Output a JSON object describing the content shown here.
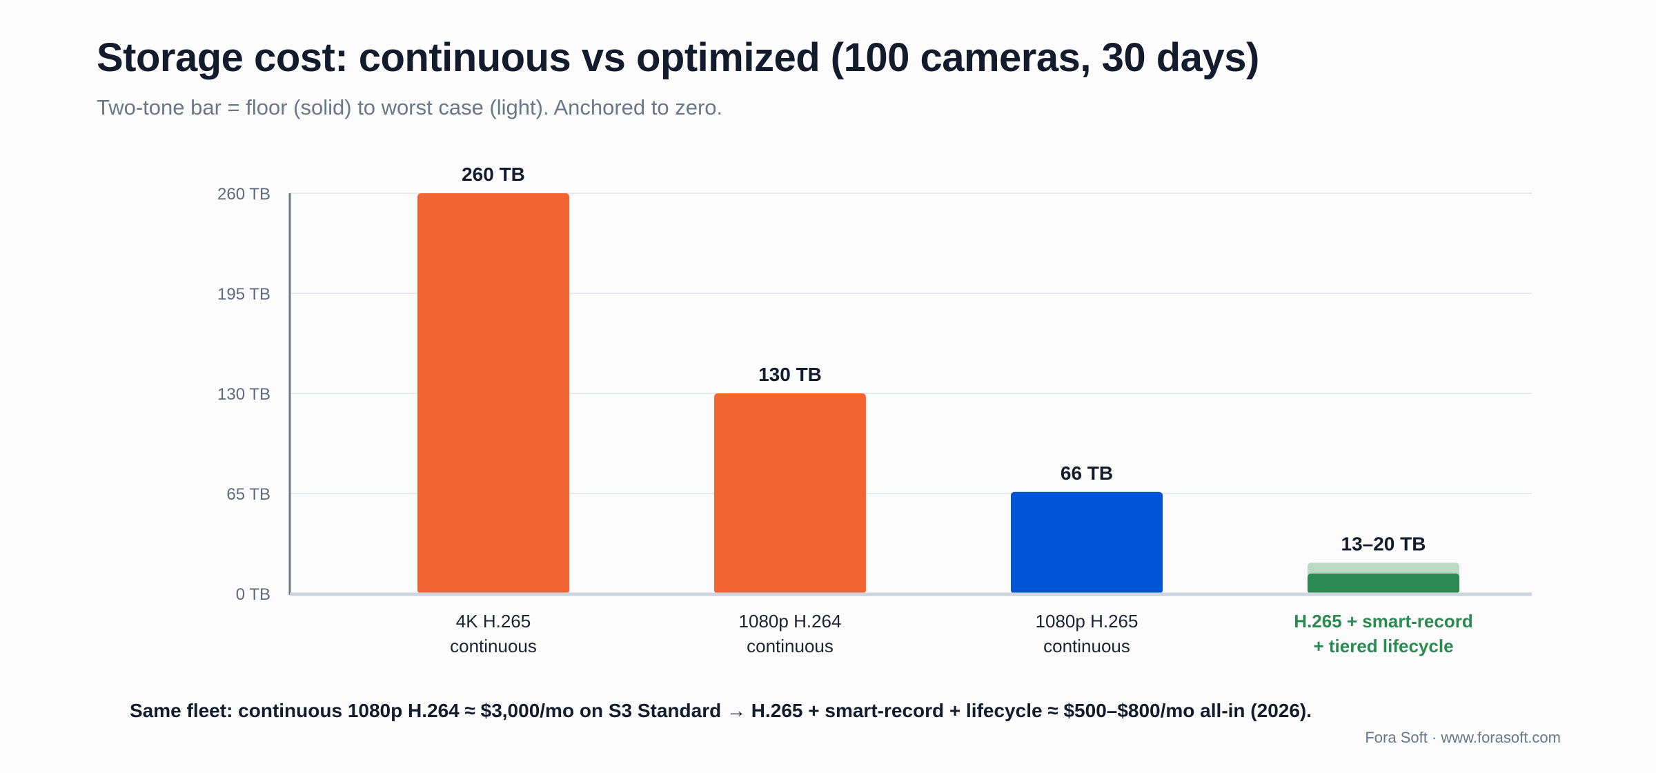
{
  "title": "Storage cost: continuous vs optimized (100 cameras, 30 days)",
  "subtitle": "Two-tone bar = floor (solid) to worst case (light). Anchored to zero.",
  "footnote": "Same fleet: continuous 1080p H.264 ≈ $3,000/mo on S3 Standard → H.265 + smart-record + lifecycle ≈ $500–$800/mo all-in (2026).",
  "credit": "Fora Soft · www.forasoft.com",
  "chart_data": {
    "type": "bar",
    "ylim": [
      0,
      260
    ],
    "y_ticks": [
      {
        "value": 0,
        "label": "0 TB"
      },
      {
        "value": 65,
        "label": "65 TB"
      },
      {
        "value": 130,
        "label": "130 TB"
      },
      {
        "value": 195,
        "label": "195 TB"
      },
      {
        "value": 260,
        "label": "260 TB"
      }
    ],
    "grid": true,
    "bars": [
      {
        "category": [
          "4K H.265",
          "continuous"
        ],
        "floor": 260,
        "worst": 260,
        "label": "260 TB",
        "color": "#f26433",
        "light_color": "#f26433",
        "category_color": "#1c2433",
        "category_bold": false
      },
      {
        "category": [
          "1080p H.264",
          "continuous"
        ],
        "floor": 130,
        "worst": 130,
        "label": "130 TB",
        "color": "#f26433",
        "light_color": "#f26433",
        "category_color": "#1c2433",
        "category_bold": false
      },
      {
        "category": [
          "1080p H.265",
          "continuous"
        ],
        "floor": 66,
        "worst": 66,
        "label": "66 TB",
        "color": "#0055d4",
        "light_color": "#0055d4",
        "category_color": "#1c2433",
        "category_bold": false
      },
      {
        "category": [
          "H.265 + smart-record",
          "+ tiered lifecycle"
        ],
        "floor": 13,
        "worst": 20,
        "label": "13–20 TB",
        "color": "#2b8a52",
        "light_color": "#bcd9c6",
        "category_color": "#2b8a52",
        "category_bold": true
      }
    ]
  }
}
